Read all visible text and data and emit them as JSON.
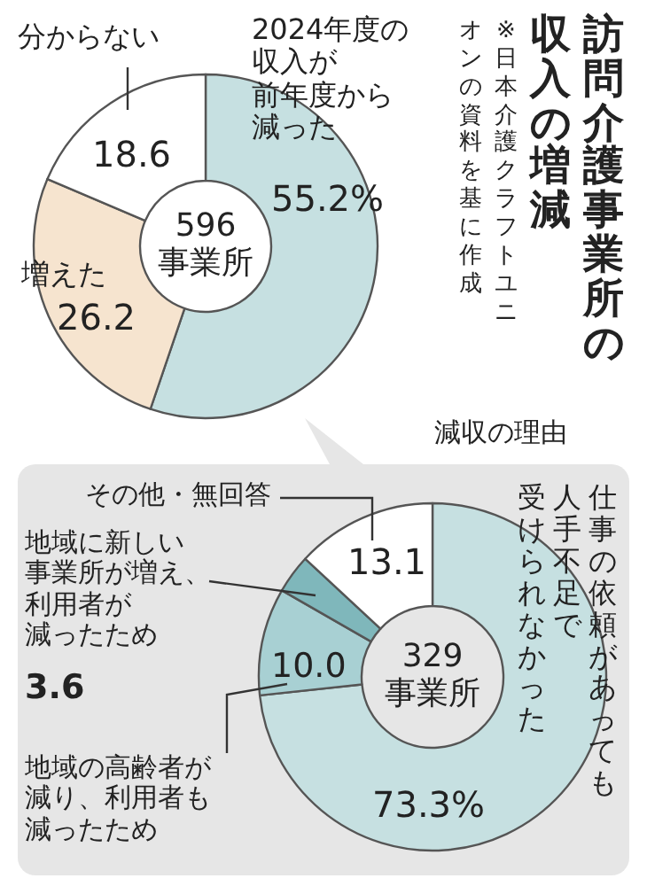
{
  "chart_data": [
    {
      "type": "donut",
      "title": "訪問介護事業所の収入の増減",
      "categories": [
        "2024年度の収入が前年度から減った",
        "増えた",
        "分からない"
      ],
      "values": [
        55.2,
        26.2,
        18.6
      ],
      "colors": [
        "#c6e0e1",
        "#f6e4cf",
        "#ffffff"
      ],
      "value_labels": [
        "55.2%",
        "26.2",
        "18.6"
      ],
      "annotations": [
        "596事業所",
        "※日本介護クラフトユニオンの資料を基に作成"
      ]
    },
    {
      "type": "donut",
      "title": "減収の理由",
      "categories": [
        "仕事の依頼があっても人手不足で受けられなかった",
        "地域の高齢者が減り、利用者も減ったため",
        "地域に新しい事業所が増え、利用者が減ったため",
        "その他・無回答"
      ],
      "values": [
        73.3,
        10.0,
        3.6,
        13.1
      ],
      "colors": [
        "#c6e0e1",
        "#a8d0d3",
        "#7fb7bb",
        "#ffffff"
      ],
      "value_labels": [
        "73.3%",
        "10.0",
        "3.6",
        "13.1"
      ],
      "annotations": [
        "329事業所"
      ]
    }
  ]
}
